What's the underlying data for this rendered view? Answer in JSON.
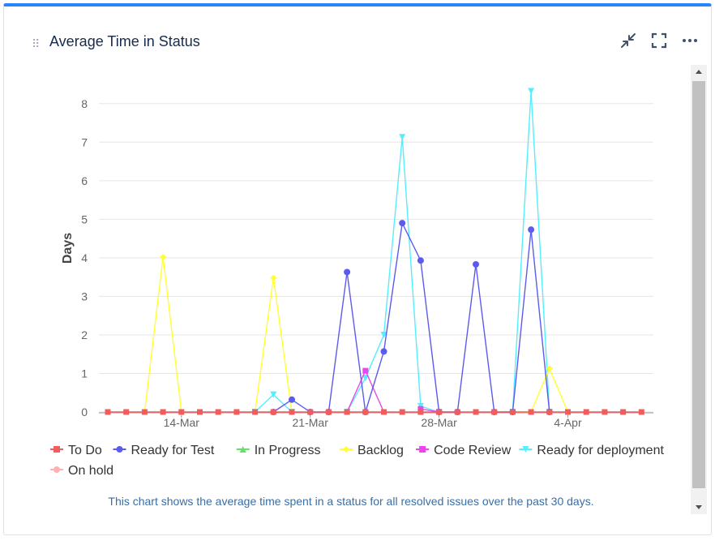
{
  "widget": {
    "title": "Average Time in Status",
    "caption": "This chart shows the average time spent in a status for all resolved issues over the past 30 days.",
    "accent_color": "#2684ff",
    "icons": [
      "drag-handle-icon",
      "minimize-icon",
      "fullscreen-icon",
      "more-icon"
    ]
  },
  "chart_data": {
    "type": "line",
    "title": "",
    "xlabel": "",
    "ylabel": "Days",
    "ylim": [
      0,
      8.5
    ],
    "yticks": [
      0,
      1,
      2,
      3,
      4,
      5,
      6,
      7,
      8
    ],
    "xtick_labels": [
      "14-Mar",
      "21-Mar",
      "28-Mar",
      "4-Apr"
    ],
    "xtick_index": [
      4,
      11,
      18,
      25
    ],
    "grid": true,
    "legend_position": "bottom",
    "categories": [
      "10-Mar",
      "11-Mar",
      "12-Mar",
      "13-Mar",
      "14-Mar",
      "15-Mar",
      "16-Mar",
      "17-Mar",
      "18-Mar",
      "19-Mar",
      "20-Mar",
      "21-Mar",
      "22-Mar",
      "23-Mar",
      "24-Mar",
      "25-Mar",
      "26-Mar",
      "27-Mar",
      "28-Mar",
      "29-Mar",
      "30-Mar",
      "31-Mar",
      "1-Apr",
      "2-Apr",
      "3-Apr",
      "4-Apr",
      "5-Apr",
      "6-Apr",
      "7-Apr",
      "8-Apr"
    ],
    "series": [
      {
        "name": "To Do",
        "color": "#f15c5c",
        "marker": "square",
        "values": [
          0,
          0,
          0,
          0,
          0,
          0,
          0,
          0,
          0,
          0,
          0,
          0,
          0,
          0,
          0,
          0,
          0,
          0,
          0,
          0,
          0,
          0,
          0,
          0,
          0,
          0,
          0,
          0,
          0,
          0
        ]
      },
      {
        "name": "Ready for Test",
        "color": "#5b5bf0",
        "marker": "circle",
        "values": [
          null,
          null,
          null,
          null,
          null,
          null,
          null,
          null,
          null,
          0,
          0.32,
          0,
          0,
          3.63,
          0,
          1.57,
          4.9,
          3.93,
          0,
          0,
          3.83,
          0,
          0,
          4.73,
          0,
          null,
          null,
          null,
          null,
          null
        ]
      },
      {
        "name": "In Progress",
        "color": "#66e066",
        "marker": "triangle",
        "values": [
          null,
          null,
          null,
          null,
          null,
          null,
          null,
          null,
          null,
          null,
          null,
          null,
          null,
          null,
          null,
          null,
          null,
          null,
          null,
          null,
          null,
          null,
          null,
          null,
          null,
          null,
          null,
          null,
          null,
          null
        ]
      },
      {
        "name": "Backlog",
        "color": "#ffff33",
        "marker": "diamond",
        "values": [
          null,
          null,
          0,
          4.02,
          0,
          null,
          null,
          null,
          0,
          3.48,
          0,
          null,
          null,
          null,
          null,
          null,
          null,
          null,
          null,
          null,
          null,
          null,
          0,
          0,
          1.13,
          0,
          null,
          null,
          null,
          null
        ]
      },
      {
        "name": "Code Review",
        "color": "#ee44ee",
        "marker": "square",
        "values": [
          null,
          null,
          null,
          null,
          null,
          null,
          null,
          null,
          null,
          null,
          null,
          null,
          null,
          0,
          1.07,
          0,
          null,
          0.08,
          0,
          null,
          null,
          null,
          null,
          null,
          null,
          null,
          null,
          null,
          null,
          null
        ]
      },
      {
        "name": "Ready for deployment",
        "color": "#55eeff",
        "marker": "triangle-down",
        "values": [
          null,
          null,
          null,
          null,
          null,
          null,
          null,
          null,
          0,
          0.45,
          0,
          null,
          null,
          0,
          0.88,
          2,
          7.13,
          0.15,
          0,
          null,
          null,
          null,
          0,
          8.32,
          0,
          null,
          null,
          null,
          null,
          null
        ]
      },
      {
        "name": "On hold",
        "color": "#ffb0b0",
        "marker": "circle",
        "values": [
          null,
          null,
          null,
          null,
          null,
          null,
          null,
          null,
          null,
          null,
          null,
          null,
          null,
          null,
          null,
          null,
          null,
          null,
          null,
          null,
          null,
          null,
          null,
          null,
          null,
          null,
          null,
          null,
          null,
          null
        ]
      }
    ]
  }
}
